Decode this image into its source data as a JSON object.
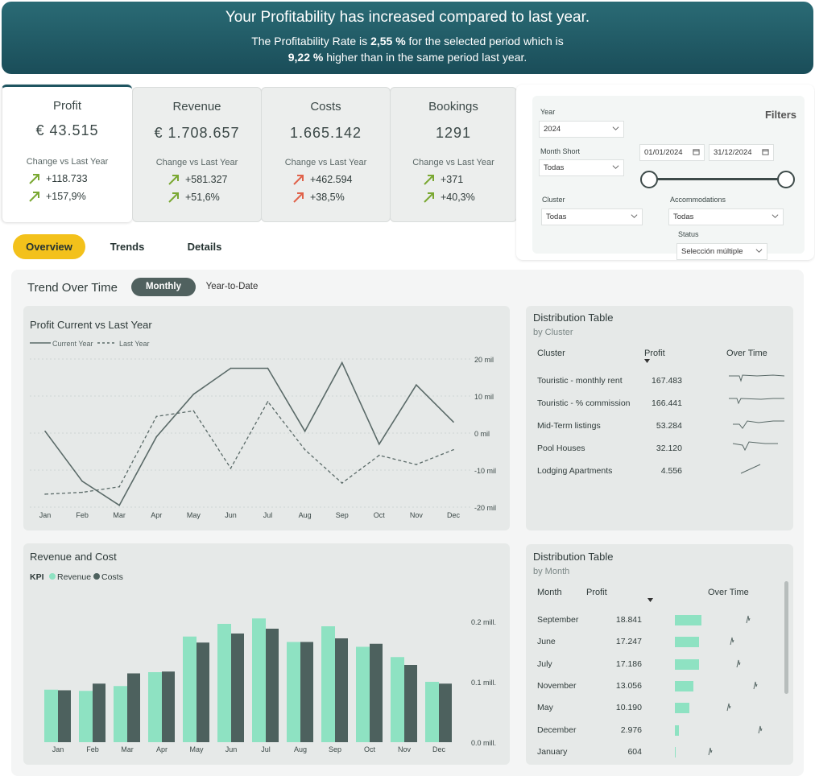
{
  "banner": {
    "headline": "Your Profitability has increased compared to last year.",
    "line1_pre": "The Profitability Rate is ",
    "rate": "2,55 %",
    "line1_post": " for the selected period which is",
    "delta": "9,22 %",
    "line2_post": " higher than in the same period last year."
  },
  "kpis": [
    {
      "title": "Profit",
      "value": "€ 43.515",
      "change_label": "Change vs Last Year",
      "abs": "+118.733",
      "pct": "+157,9%",
      "arrow": "up-green"
    },
    {
      "title": "Revenue",
      "value": "€ 1.708.657",
      "change_label": "Change vs Last Year",
      "abs": "+581.327",
      "pct": "+51,6%",
      "arrow": "up-green"
    },
    {
      "title": "Costs",
      "value": "1.665.142",
      "change_label": "Change vs Last Year",
      "abs": "+462.594",
      "pct": "+38,5%",
      "arrow": "up-red"
    },
    {
      "title": "Bookings",
      "value": "1291",
      "change_label": "Change vs Last Year",
      "abs": "+371",
      "pct": "+40,3%",
      "arrow": "up-green"
    }
  ],
  "colors": {
    "up_green": "#7aa832",
    "up_red": "#e0624a",
    "revenue": "#8ee2c2",
    "costs": "#4d615e",
    "line": "#5a6a68",
    "tab_active": "#f3c11b"
  },
  "filters": {
    "title": "Filters",
    "year_label": "Year",
    "year_value": "2024",
    "month_label": "Month Short",
    "month_value": "Todas",
    "date_from": "01/01/2024",
    "date_to": "31/12/2024",
    "cluster_label": "Cluster",
    "cluster_value": "Todas",
    "accom_label": "Accommodations",
    "accom_value": "Todas",
    "status_label": "Status",
    "status_value": "Selección múltiple"
  },
  "tabs": [
    "Overview",
    "Trends",
    "Details"
  ],
  "trend": {
    "title": "Trend Over Time",
    "toggle_on": "Monthly",
    "toggle_off": "Year-to-Date"
  },
  "line_chart_title": "Profit Current vs Last Year",
  "bar_chart_title": "Revenue and Cost",
  "chart_data": [
    {
      "type": "line",
      "title": "Profit Current vs Last Year",
      "categories": [
        "Jan",
        "Feb",
        "Mar",
        "Apr",
        "May",
        "Jun",
        "Jul",
        "Aug",
        "Sep",
        "Oct",
        "Nov",
        "Dec"
      ],
      "series": [
        {
          "name": "Current Year",
          "style": "solid",
          "values": [
            0.5,
            -13,
            -19.5,
            -1,
            10.5,
            17.5,
            17.5,
            0.5,
            19,
            -3,
            13,
            3
          ]
        },
        {
          "name": "Last Year",
          "style": "dashed",
          "values": [
            -16.5,
            -16,
            -14.5,
            4.5,
            6,
            -9.5,
            8.5,
            -4.5,
            -13.5,
            -6,
            -8.5,
            -4.5
          ]
        }
      ],
      "yticks": [
        "20 mil",
        "10 mil",
        "0 mil",
        "-10 mil",
        "-20 mil"
      ],
      "ylim": [
        -20,
        20
      ]
    },
    {
      "type": "bar",
      "title": "Revenue and Cost",
      "legend_title": "KPI",
      "categories": [
        "Jan",
        "Feb",
        "Mar",
        "Apr",
        "May",
        "Jun",
        "Jul",
        "Aug",
        "Sep",
        "Oct",
        "Nov",
        "Dec"
      ],
      "series": [
        {
          "name": "Revenue",
          "values": [
            0.087,
            0.085,
            0.093,
            0.116,
            0.175,
            0.196,
            0.205,
            0.166,
            0.192,
            0.158,
            0.141,
            0.1
          ]
        },
        {
          "name": "Costs",
          "values": [
            0.086,
            0.097,
            0.114,
            0.117,
            0.165,
            0.18,
            0.188,
            0.166,
            0.172,
            0.163,
            0.128,
            0.097
          ]
        }
      ],
      "yticks": [
        "0.2 mill.",
        "0.1 mill.",
        "0.0 mill."
      ],
      "ylim": [
        0,
        0.2
      ]
    }
  ],
  "dist_cluster": {
    "title": "Distribution Table",
    "subtitle": "by Cluster",
    "headers": [
      "Cluster",
      "Profit",
      "Over Time"
    ],
    "rows": [
      {
        "name": "Touristic - monthly rent",
        "profit": "167.483"
      },
      {
        "name": "Touristic  - % commission",
        "profit": "166.441"
      },
      {
        "name": "Mid-Term listings",
        "profit": "53.284"
      },
      {
        "name": "Pool Houses",
        "profit": "32.120"
      },
      {
        "name": "Lodging Apartments",
        "profit": "4.556"
      }
    ]
  },
  "dist_month": {
    "title": "Distribution Table",
    "subtitle": "by Month",
    "headers": [
      "Month",
      "Profit",
      "Over Time"
    ],
    "rows": [
      {
        "name": "September",
        "profit": "18.841",
        "bar": 1.0
      },
      {
        "name": "June",
        "profit": "17.247",
        "bar": 0.915
      },
      {
        "name": "July",
        "profit": "17.186",
        "bar": 0.912
      },
      {
        "name": "November",
        "profit": "13.056",
        "bar": 0.693
      },
      {
        "name": "May",
        "profit": "10.190",
        "bar": 0.541
      },
      {
        "name": "December",
        "profit": "2.976",
        "bar": 0.158
      },
      {
        "name": "January",
        "profit": "604",
        "bar": 0.032
      }
    ]
  }
}
